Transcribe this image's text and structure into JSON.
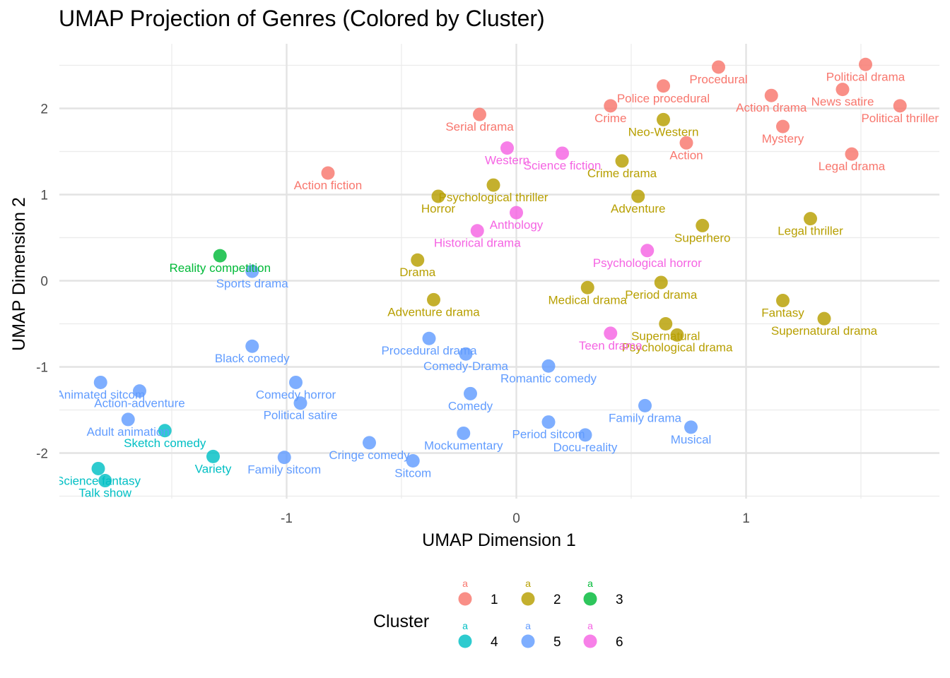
{
  "chart_data": {
    "type": "scatter",
    "title": "UMAP Projection of Genres (Colored by Cluster)",
    "xlabel": "UMAP Dimension 1",
    "ylabel": "UMAP Dimension 2",
    "xlim": [
      -2.0,
      1.83
    ],
    "ylim": [
      -2.5,
      2.67
    ],
    "x_ticks": [
      -1,
      0,
      1
    ],
    "y_ticks": [
      -2,
      -1,
      0,
      1,
      2
    ],
    "grid": true,
    "legend": {
      "title": "Cluster",
      "position": "bottom",
      "key_glyph": "a",
      "entries": [
        {
          "cluster": "1",
          "color": "#F8766D"
        },
        {
          "cluster": "2",
          "color": "#B79F00"
        },
        {
          "cluster": "3",
          "color": "#00BA38"
        },
        {
          "cluster": "4",
          "color": "#00BFC4"
        },
        {
          "cluster": "5",
          "color": "#619CFF"
        },
        {
          "cluster": "6",
          "color": "#F564E3"
        }
      ]
    },
    "colors": {
      "1": "#F8766D",
      "2": "#B79F00",
      "3": "#00BA38",
      "4": "#00BFC4",
      "5": "#619CFF",
      "6": "#F564E3"
    },
    "points": [
      {
        "label": "Procedural",
        "x": 0.88,
        "y": 2.48,
        "cluster": "1"
      },
      {
        "label": "Political drama",
        "x": 1.52,
        "y": 2.51,
        "cluster": "1"
      },
      {
        "label": "Police procedural",
        "x": 0.64,
        "y": 2.26,
        "cluster": "1"
      },
      {
        "label": "News satire",
        "x": 1.42,
        "y": 2.22,
        "cluster": "1"
      },
      {
        "label": "Action drama",
        "x": 1.11,
        "y": 2.15,
        "cluster": "1"
      },
      {
        "label": "Crime",
        "x": 0.41,
        "y": 2.03,
        "cluster": "1"
      },
      {
        "label": "Political thriller",
        "x": 1.67,
        "y": 2.03,
        "cluster": "1"
      },
      {
        "label": "Serial drama",
        "x": -0.16,
        "y": 1.93,
        "cluster": "1"
      },
      {
        "label": "Mystery",
        "x": 1.16,
        "y": 1.79,
        "cluster": "1"
      },
      {
        "label": "Action",
        "x": 0.74,
        "y": 1.6,
        "cluster": "1"
      },
      {
        "label": "Legal drama",
        "x": 1.46,
        "y": 1.47,
        "cluster": "1"
      },
      {
        "label": "Action fiction",
        "x": -0.82,
        "y": 1.25,
        "cluster": "1"
      },
      {
        "label": "Neo-Western",
        "x": 0.64,
        "y": 1.87,
        "cluster": "2"
      },
      {
        "label": "Crime drama",
        "x": 0.46,
        "y": 1.39,
        "cluster": "2"
      },
      {
        "label": "Psychological thriller",
        "x": -0.1,
        "y": 1.11,
        "cluster": "2"
      },
      {
        "label": "Horror",
        "x": -0.34,
        "y": 0.98,
        "cluster": "2"
      },
      {
        "label": "Adventure",
        "x": 0.53,
        "y": 0.98,
        "cluster": "2"
      },
      {
        "label": "Legal thriller",
        "x": 1.28,
        "y": 0.72,
        "cluster": "2"
      },
      {
        "label": "Superhero",
        "x": 0.81,
        "y": 0.64,
        "cluster": "2"
      },
      {
        "label": "Drama",
        "x": -0.43,
        "y": 0.24,
        "cluster": "2"
      },
      {
        "label": "Medical drama",
        "x": 0.31,
        "y": -0.08,
        "cluster": "2"
      },
      {
        "label": "Period drama",
        "x": 0.63,
        "y": -0.02,
        "cluster": "2"
      },
      {
        "label": "Adventure drama",
        "x": -0.36,
        "y": -0.22,
        "cluster": "2"
      },
      {
        "label": "Fantasy",
        "x": 1.16,
        "y": -0.23,
        "cluster": "2"
      },
      {
        "label": "Supernatural drama",
        "x": 1.34,
        "y": -0.44,
        "cluster": "2"
      },
      {
        "label": "Supernatural",
        "x": 0.65,
        "y": -0.5,
        "cluster": "2"
      },
      {
        "label": "Psychological drama",
        "x": 0.7,
        "y": -0.63,
        "cluster": "2"
      },
      {
        "label": "Reality competition",
        "x": -1.29,
        "y": 0.29,
        "cluster": "3"
      },
      {
        "label": "Sketch comedy",
        "x": -1.53,
        "y": -1.74,
        "cluster": "4"
      },
      {
        "label": "Variety",
        "x": -1.32,
        "y": -2.04,
        "cluster": "4"
      },
      {
        "label": "Science fantasy",
        "x": -1.82,
        "y": -2.18,
        "cluster": "4"
      },
      {
        "label": "Talk show",
        "x": -1.79,
        "y": -2.32,
        "cluster": "4"
      },
      {
        "label": "Sports drama",
        "x": -1.15,
        "y": 0.11,
        "cluster": "5"
      },
      {
        "label": "Black comedy",
        "x": -1.15,
        "y": -0.76,
        "cluster": "5"
      },
      {
        "label": "Procedural drama",
        "x": -0.38,
        "y": -0.67,
        "cluster": "5"
      },
      {
        "label": "Comedy-Drama",
        "x": -0.22,
        "y": -0.85,
        "cluster": "5"
      },
      {
        "label": "Romantic comedy",
        "x": 0.14,
        "y": -0.99,
        "cluster": "5"
      },
      {
        "label": "Animated sitcom",
        "x": -1.81,
        "y": -1.18,
        "cluster": "5"
      },
      {
        "label": "Action-adventure",
        "x": -1.64,
        "y": -1.28,
        "cluster": "5"
      },
      {
        "label": "Comedy horror",
        "x": -0.96,
        "y": -1.18,
        "cluster": "5"
      },
      {
        "label": "Political satire",
        "x": -0.94,
        "y": -1.42,
        "cluster": "5"
      },
      {
        "label": "Comedy",
        "x": -0.2,
        "y": -1.31,
        "cluster": "5"
      },
      {
        "label": "Family drama",
        "x": 0.56,
        "y": -1.45,
        "cluster": "5"
      },
      {
        "label": "Adult animation",
        "x": -1.69,
        "y": -1.61,
        "cluster": "5"
      },
      {
        "label": "Period sitcom",
        "x": 0.14,
        "y": -1.64,
        "cluster": "5"
      },
      {
        "label": "Musical",
        "x": 0.76,
        "y": -1.7,
        "cluster": "5"
      },
      {
        "label": "Mockumentary",
        "x": -0.23,
        "y": -1.77,
        "cluster": "5"
      },
      {
        "label": "Docu-reality",
        "x": 0.3,
        "y": -1.79,
        "cluster": "5"
      },
      {
        "label": "Cringe comedy",
        "x": -0.64,
        "y": -1.88,
        "cluster": "5"
      },
      {
        "label": "Family sitcom",
        "x": -1.01,
        "y": -2.05,
        "cluster": "5"
      },
      {
        "label": "Sitcom",
        "x": -0.45,
        "y": -2.09,
        "cluster": "5"
      },
      {
        "label": "Western",
        "x": -0.04,
        "y": 1.54,
        "cluster": "6"
      },
      {
        "label": "Science fiction",
        "x": 0.2,
        "y": 1.48,
        "cluster": "6"
      },
      {
        "label": "Anthology",
        "x": 0.0,
        "y": 0.79,
        "cluster": "6"
      },
      {
        "label": "Historical drama",
        "x": -0.17,
        "y": 0.58,
        "cluster": "6"
      },
      {
        "label": "Psychological horror",
        "x": 0.57,
        "y": 0.35,
        "cluster": "6"
      },
      {
        "label": "Teen drama",
        "x": 0.41,
        "y": -0.61,
        "cluster": "6"
      }
    ]
  }
}
